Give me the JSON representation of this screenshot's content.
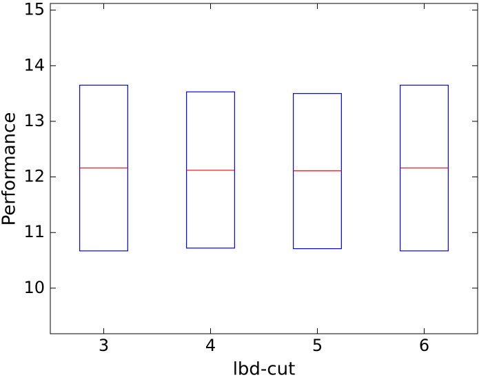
{
  "chart_data": {
    "type": "box",
    "xlabel": "lbd-cut",
    "ylabel": "Performance",
    "categories": [
      "3",
      "4",
      "5",
      "6"
    ],
    "q1": [
      10.67,
      10.72,
      10.71,
      10.67
    ],
    "median": [
      12.16,
      12.12,
      12.11,
      12.16
    ],
    "q3": [
      13.65,
      13.53,
      13.5,
      13.65
    ],
    "box_color": "#0000ff",
    "median_color": "#ff0000",
    "ylim": [
      9.18,
      15.12
    ],
    "yticks": [
      10,
      11,
      12,
      13,
      14,
      15
    ],
    "grid": false
  }
}
